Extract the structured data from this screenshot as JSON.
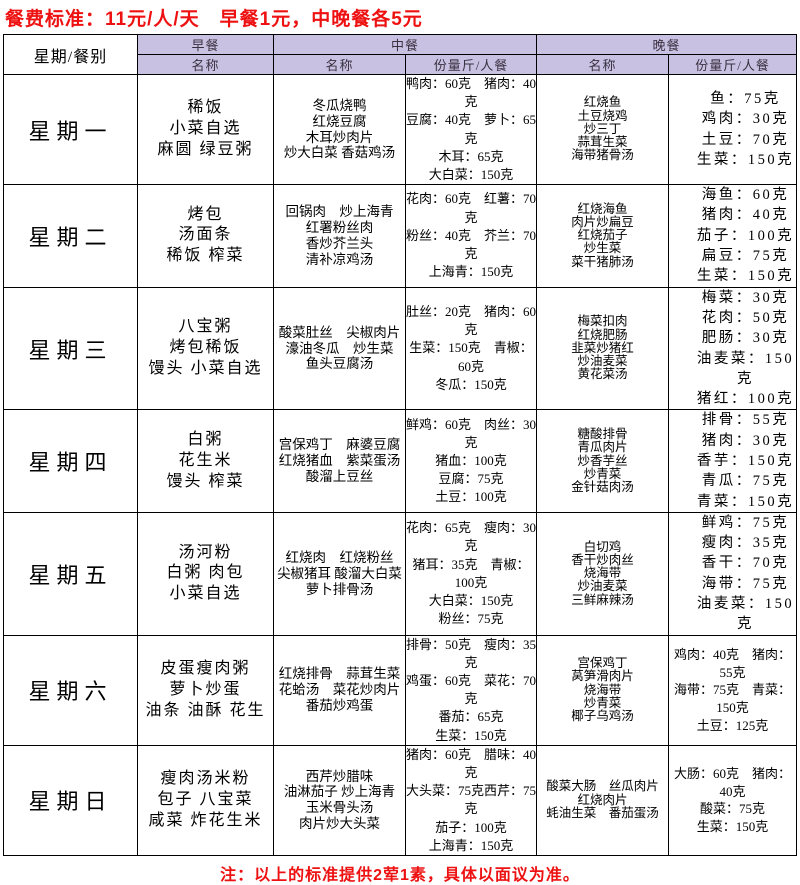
{
  "title": "餐费标准：11元/人/天　早餐1元，中晚餐各5元",
  "footer_note": "注：以上的标准提供2荤1素，具体以面议为准。",
  "colors": {
    "accent_red": "#ee1111",
    "header_bg": "#c8c1e2",
    "border": "#000000",
    "background": "#ffffff"
  },
  "table": {
    "corner_header": "星期/餐别",
    "meal_headers": [
      "早餐",
      "中餐",
      "晚餐"
    ],
    "sub_headers": [
      "名称",
      "名称",
      "份量斤/人餐",
      "名称",
      "份量斤/人餐"
    ],
    "rows": [
      {
        "day": "星期一",
        "breakfast": [
          "稀饭",
          "小菜自选",
          "麻圆 绿豆粥"
        ],
        "lunch_names": [
          "冬瓜烧鸭",
          "红烧豆腐",
          "木耳炒肉片",
          "炒大白菜 香菇鸡汤"
        ],
        "lunch_amounts": [
          "鸭肉：60克　猪肉：40克",
          "豆腐：40克　萝卜：65克",
          "木耳：65克",
          "大白菜：150克"
        ],
        "dinner_names": [
          "红烧鱼",
          "土豆烧鸡",
          "炒三丁",
          "蒜茸生菜",
          "海带猪骨汤"
        ],
        "dinner_amounts": [
          "鱼：75克",
          "鸡肉：30克",
          "土豆：70克",
          "生菜：150克"
        ]
      },
      {
        "day": "星期二",
        "breakfast": [
          "烤包",
          "汤面条",
          "稀饭 榨菜"
        ],
        "lunch_names": [
          "回锅肉　炒上海青",
          "红署粉丝肉",
          "香炒芥兰头",
          "清补凉鸡汤"
        ],
        "lunch_amounts": [
          "花肉：60克　红薯：70克",
          "粉丝：40克　芥兰：70克",
          "上海青：150克"
        ],
        "dinner_names": [
          "红烧海鱼",
          "肉片炒扁豆",
          "红烧茄子",
          "炒生菜",
          "菜干猪肺汤"
        ],
        "dinner_amounts": [
          "海鱼：60克",
          "猪肉：40克",
          "茄子：100克",
          "扁豆：75克",
          "生菜：150克"
        ]
      },
      {
        "day": "星期三",
        "breakfast": [
          "八宝粥",
          "烤包稀饭",
          "馒头 小菜自选"
        ],
        "lunch_names": [
          "酸菜肚丝　尖椒肉片",
          "濠油冬瓜　炒生菜",
          "鱼头豆腐汤"
        ],
        "lunch_amounts": [
          "肚丝：20克　猪肉：60克",
          "生菜：150克　青椒：60克",
          "冬瓜：150克"
        ],
        "dinner_names": [
          "梅菜扣肉",
          "红烧肥肠",
          "韭菜炒猪红",
          "炒油麦菜",
          "黄花菜汤"
        ],
        "dinner_amounts": [
          "梅菜：30克",
          "花肉：50克",
          "肥肠：30克",
          "油麦菜：150克",
          "猪红：100克"
        ]
      },
      {
        "day": "星期四",
        "breakfast": [
          "白粥",
          "花生米",
          "馒头 榨菜"
        ],
        "lunch_names": [
          "宫保鸡丁　麻婆豆腐",
          "红烧猪血　紫菜蛋汤",
          "酸溜上豆丝"
        ],
        "lunch_amounts": [
          "鲜鸡：60克　肉丝：30克",
          "猪血：100克",
          "豆腐：75克",
          "土豆：100克"
        ],
        "dinner_names": [
          "糖酸排骨",
          "青瓜肉片",
          "炒香芋丝",
          "炒青菜",
          "金针菇肉汤"
        ],
        "dinner_amounts": [
          "排骨：55克",
          "猪肉：30克",
          "香芋：150克",
          "青瓜：75克",
          "青菜：150克"
        ]
      },
      {
        "day": "星期五",
        "breakfast": [
          "汤河粉",
          "白粥 肉包",
          "小菜自选"
        ],
        "lunch_names": [
          "红烧肉　红烧粉丝",
          "尖椒猪耳 酸溜大白菜",
          "萝卜排骨汤"
        ],
        "lunch_amounts": [
          "花肉：65克　瘦肉：30克",
          "猪耳：35克　青椒：100克",
          "大白菜：150克",
          "粉丝：75克"
        ],
        "dinner_names": [
          "白切鸡",
          "香干炒肉丝",
          "烧海带",
          "炒油麦菜",
          "三鲜麻辣汤"
        ],
        "dinner_amounts": [
          "鲜鸡：75克",
          "瘦肉：35克",
          "香干：70克",
          "海带：75克",
          "油麦菜：150克"
        ]
      },
      {
        "day": "星期六",
        "breakfast": [
          "皮蛋瘦肉粥",
          "萝卜炒蛋",
          "油条 油酥 花生"
        ],
        "lunch_names": [
          "红烧排骨　蒜茸生菜",
          "花蛤汤　菜花炒肉片",
          "番茄炒鸡蛋"
        ],
        "lunch_amounts": [
          "排骨：50克　瘦肉：35克",
          "鸡蛋：60克　菜花：70克",
          "番茄：65克",
          "生菜：150克"
        ],
        "dinner_names": [
          "宫保鸡丁",
          "莴笋滑肉片",
          "烧海带",
          "炒青菜",
          "椰子乌鸡汤"
        ],
        "dinner_amounts": [
          "鸡肉：40克　猪肉：55克",
          "海带：75克　青菜：150克",
          "土豆：125克"
        ]
      },
      {
        "day": "星期日",
        "breakfast": [
          "瘦肉汤米粉",
          "包子 八宝菜",
          "咸菜 炸花生米"
        ],
        "lunch_names": [
          "西芹炒腊味",
          "油淋茄子 炒上海青",
          "玉米骨头汤",
          "肉片炒大头菜"
        ],
        "lunch_amounts": [
          "猪肉：60克　腊味：40克",
          "大头菜：75克西芹：75克",
          "茄子：100克",
          "上海青：150克"
        ],
        "dinner_names": [
          "酸菜大肠　丝瓜肉片",
          "红烧肉片",
          "蚝油生菜　番茄蛋汤"
        ],
        "dinner_amounts": [
          "大肠：60克　猪肉：40克",
          "酸菜：75克",
          "生菜：150克"
        ]
      }
    ]
  }
}
